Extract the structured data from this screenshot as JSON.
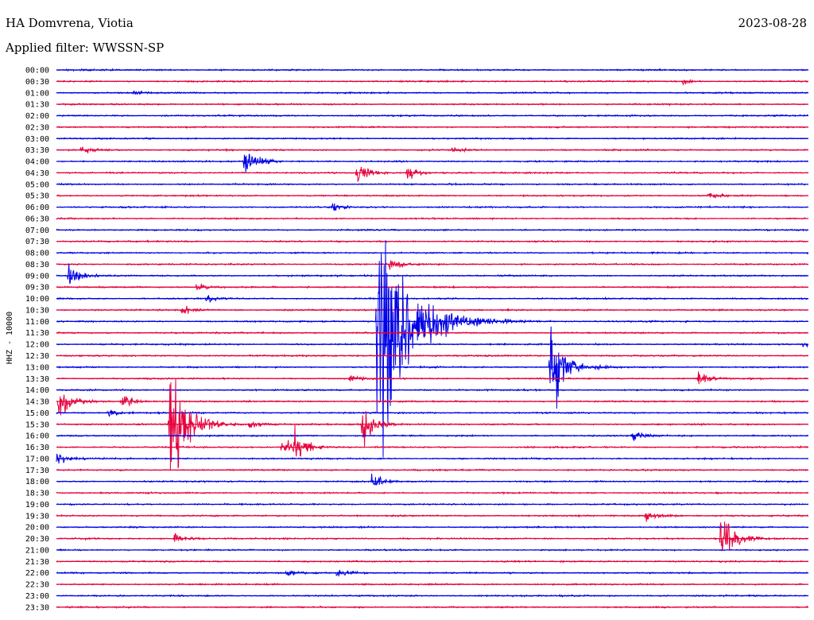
{
  "header": {
    "station": "HA Domvrena, Viotia",
    "date": "2023-08-28",
    "filter": "Applied filter: WWSSN-SP"
  },
  "chart_data": {
    "type": "line",
    "ylabel": "HHZ - 10000",
    "colors": [
      "#0000e6",
      "#e6003c"
    ],
    "trace_times": [
      "00:00",
      "00:30",
      "01:00",
      "01:30",
      "02:00",
      "02:30",
      "03:00",
      "03:30",
      "04:00",
      "04:30",
      "05:00",
      "05:30",
      "06:00",
      "06:30",
      "07:00",
      "07:30",
      "08:00",
      "08:30",
      "09:00",
      "09:30",
      "10:00",
      "10:30",
      "11:00",
      "11:30",
      "12:00",
      "12:30",
      "13:00",
      "13:30",
      "14:00",
      "14:30",
      "15:00",
      "15:30",
      "16:00",
      "16:30",
      "17:00",
      "17:30",
      "18:00",
      "18:30",
      "19:00",
      "19:30",
      "20:00",
      "20:30",
      "21:00",
      "21:30",
      "22:00",
      "22:30",
      "23:00",
      "23:30"
    ],
    "trace_duration_min": 30,
    "events": [
      {
        "trace": "00:30",
        "minute": 25.0,
        "amp": 3
      },
      {
        "trace": "01:00",
        "minute": 3.1,
        "amp": 3
      },
      {
        "trace": "03:30",
        "minute": 1.0,
        "amp": 5,
        "dur": 1.2
      },
      {
        "trace": "03:30",
        "minute": 15.8,
        "amp": 5,
        "dur": 0.8
      },
      {
        "trace": "04:00",
        "minute": 7.5,
        "amp": 20
      },
      {
        "trace": "04:30",
        "minute": 12.0,
        "amp": 15
      },
      {
        "trace": "04:30",
        "minute": 14.0,
        "amp": 8
      },
      {
        "trace": "05:30",
        "minute": 26.0,
        "amp": 5
      },
      {
        "trace": "06:00",
        "minute": 11.0,
        "amp": 5
      },
      {
        "trace": "08:30",
        "minute": 13.3,
        "amp": 8
      },
      {
        "trace": "09:00",
        "minute": 0.5,
        "amp": 14
      },
      {
        "trace": "09:30",
        "minute": 5.6,
        "amp": 5
      },
      {
        "trace": "10:00",
        "minute": 6.0,
        "amp": 4
      },
      {
        "trace": "10:30",
        "minute": 5.0,
        "amp": 7
      },
      {
        "trace": "11:00",
        "minute": 12.8,
        "amp": 160,
        "dur": 1.6
      },
      {
        "trace": "12:00",
        "minute": 29.8,
        "amp": 4
      },
      {
        "trace": "13:00",
        "minute": 19.7,
        "amp": 52
      },
      {
        "trace": "13:30",
        "minute": 11.7,
        "amp": 4
      },
      {
        "trace": "13:30",
        "minute": 25.6,
        "amp": 8
      },
      {
        "trace": "14:30",
        "minute": 0.1,
        "amp": 25
      },
      {
        "trace": "14:30",
        "minute": 2.6,
        "amp": 10
      },
      {
        "trace": "15:00",
        "minute": 2.1,
        "amp": 5
      },
      {
        "trace": "15:30",
        "minute": 4.5,
        "amp": 80,
        "dur": 1.0
      },
      {
        "trace": "15:30",
        "minute": 7.7,
        "amp": 6
      },
      {
        "trace": "15:30",
        "minute": 12.2,
        "amp": 25
      },
      {
        "trace": "16:00",
        "minute": 23.0,
        "amp": 6
      },
      {
        "trace": "16:30",
        "minute": 9.0,
        "amp": 12
      },
      {
        "trace": "16:30",
        "minute": 9.5,
        "amp": 20
      },
      {
        "trace": "17:00",
        "minute": 0.0,
        "amp": 7
      },
      {
        "trace": "18:00",
        "minute": 12.6,
        "amp": 12
      },
      {
        "trace": "19:30",
        "minute": 23.5,
        "amp": 6,
        "dur": 1.4
      },
      {
        "trace": "20:30",
        "minute": 26.5,
        "amp": 40
      },
      {
        "trace": "20:30",
        "minute": 4.7,
        "amp": 7
      },
      {
        "trace": "22:00",
        "minute": 9.2,
        "amp": 4
      },
      {
        "trace": "22:00",
        "minute": 11.2,
        "amp": 5,
        "dur": 1.5
      }
    ]
  }
}
